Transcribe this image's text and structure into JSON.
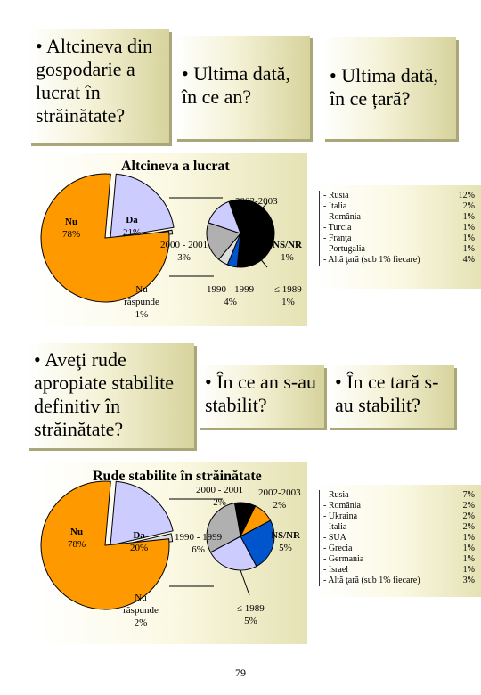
{
  "questions_top": {
    "q1": "• Altcineva din gospodarie a lucrat în străinătate?",
    "q2": "• Ultima dată, în ce an?",
    "q3": "• Ultima dată, în ce țară?"
  },
  "questions_bottom": {
    "q1": "• Aveţi rude apropiate stabilite definitiv în străinătate?",
    "q2": "• În ce an s-au stabilit?",
    "q3": "• În ce tară s-au stabilit?"
  },
  "colors": {
    "orange": "#ff9900",
    "lavender": "#ccccff",
    "black": "#000000",
    "blue": "#0055cc",
    "grey": "#b0b0b0",
    "lightgrey": "#dddddd"
  },
  "page_number": "79",
  "chart_data": [
    {
      "type": "pie",
      "title": "Altcineva a lucrat",
      "categories": [
        "Nu",
        "Da",
        "Nu răspunde"
      ],
      "values": [
        78,
        21,
        1
      ],
      "labels": [
        {
          "name": "Nu",
          "value": "78%"
        },
        {
          "name": "Da",
          "value": "21%"
        },
        {
          "name": "Nu răspunde",
          "value": "1%"
        }
      ]
    },
    {
      "type": "pie",
      "categories": [
        "2002-2003",
        "NS/NR",
        "≤ 1989",
        "1990 - 1999",
        "2000 - 2001"
      ],
      "values": [
        12,
        1,
        1,
        4,
        3
      ],
      "labels": [
        {
          "name": "2002-2003",
          "value": "12%"
        },
        {
          "name": "NS/NR",
          "value": "1%"
        },
        {
          "name": "≤ 1989",
          "value": "1%"
        },
        {
          "name": "1990 - 1999",
          "value": "4%"
        },
        {
          "name": "2000 - 2001",
          "value": "3%"
        }
      ]
    },
    {
      "type": "table",
      "rows": [
        {
          "name": "- Rusia",
          "value": "12%"
        },
        {
          "name": "- Italia",
          "value": "2%"
        },
        {
          "name": "- România",
          "value": "1%"
        },
        {
          "name": "- Turcia",
          "value": "1%"
        },
        {
          "name": "- Franţa",
          "value": "1%"
        },
        {
          "name": "- Portugalia",
          "value": "1%"
        },
        {
          "name": "- Altă ţară (sub 1% fiecare)",
          "value": "4%"
        }
      ]
    },
    {
      "type": "pie",
      "title": "Rude stabilite în străinătate",
      "categories": [
        "Nu",
        "Da",
        "Nu răspunde"
      ],
      "values": [
        78,
        20,
        2
      ],
      "labels": [
        {
          "name": "Nu",
          "value": "78%"
        },
        {
          "name": "Da",
          "value": "20%"
        },
        {
          "name": "Nu răspunde",
          "value": "2%"
        }
      ]
    },
    {
      "type": "pie",
      "categories": [
        "2000 - 2001",
        "2002-2003",
        "NS/NR",
        "≤ 1989",
        "1990 - 1999"
      ],
      "values": [
        2,
        2,
        5,
        5,
        6
      ],
      "labels": [
        {
          "name": "2000 - 2001",
          "value": "2%"
        },
        {
          "name": "2002-2003",
          "value": "2%"
        },
        {
          "name": "NS/NR",
          "value": "5%"
        },
        {
          "name": "≤ 1989",
          "value": "5%"
        },
        {
          "name": "1990 - 1999",
          "value": "6%"
        }
      ]
    },
    {
      "type": "table",
      "rows": [
        {
          "name": "- Rusia",
          "value": "7%"
        },
        {
          "name": "- România",
          "value": "2%"
        },
        {
          "name": "- Ukraina",
          "value": "2%"
        },
        {
          "name": "- Italia",
          "value": "2%"
        },
        {
          "name": "- SUA",
          "value": "1%"
        },
        {
          "name": "- Grecia",
          "value": "1%"
        },
        {
          "name": "- Germania",
          "value": "1%"
        },
        {
          "name": "- Israel",
          "value": "1%"
        },
        {
          "name": "- Altă ţară (sub 1% fiecare)",
          "value": "3%"
        }
      ]
    }
  ]
}
